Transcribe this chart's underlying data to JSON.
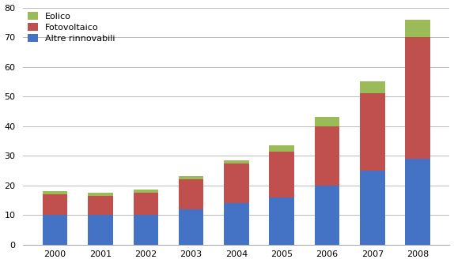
{
  "years": [
    2000,
    2001,
    2002,
    2003,
    2004,
    2005,
    2006,
    2007,
    2008
  ],
  "altre": [
    10,
    10,
    10,
    12,
    14,
    16,
    20,
    25,
    29
  ],
  "fotovoltaico": [
    7,
    6.5,
    7.5,
    10,
    13.5,
    15.5,
    20,
    26,
    41
  ],
  "eolico": [
    1,
    1,
    1,
    1,
    1,
    2,
    3,
    4,
    6
  ],
  "color_altre": "#4472C4",
  "color_foto": "#C0504D",
  "color_eolico": "#9BBB59",
  "ylim": [
    0,
    80
  ],
  "yticks": [
    0,
    10,
    20,
    30,
    40,
    50,
    60,
    70,
    80
  ],
  "legend_labels": [
    "Eolico",
    "Fotovoltaico",
    "Altre rinnovabili"
  ],
  "bg_color": "#FFFFFF",
  "grid_color": "#BBBBBB"
}
